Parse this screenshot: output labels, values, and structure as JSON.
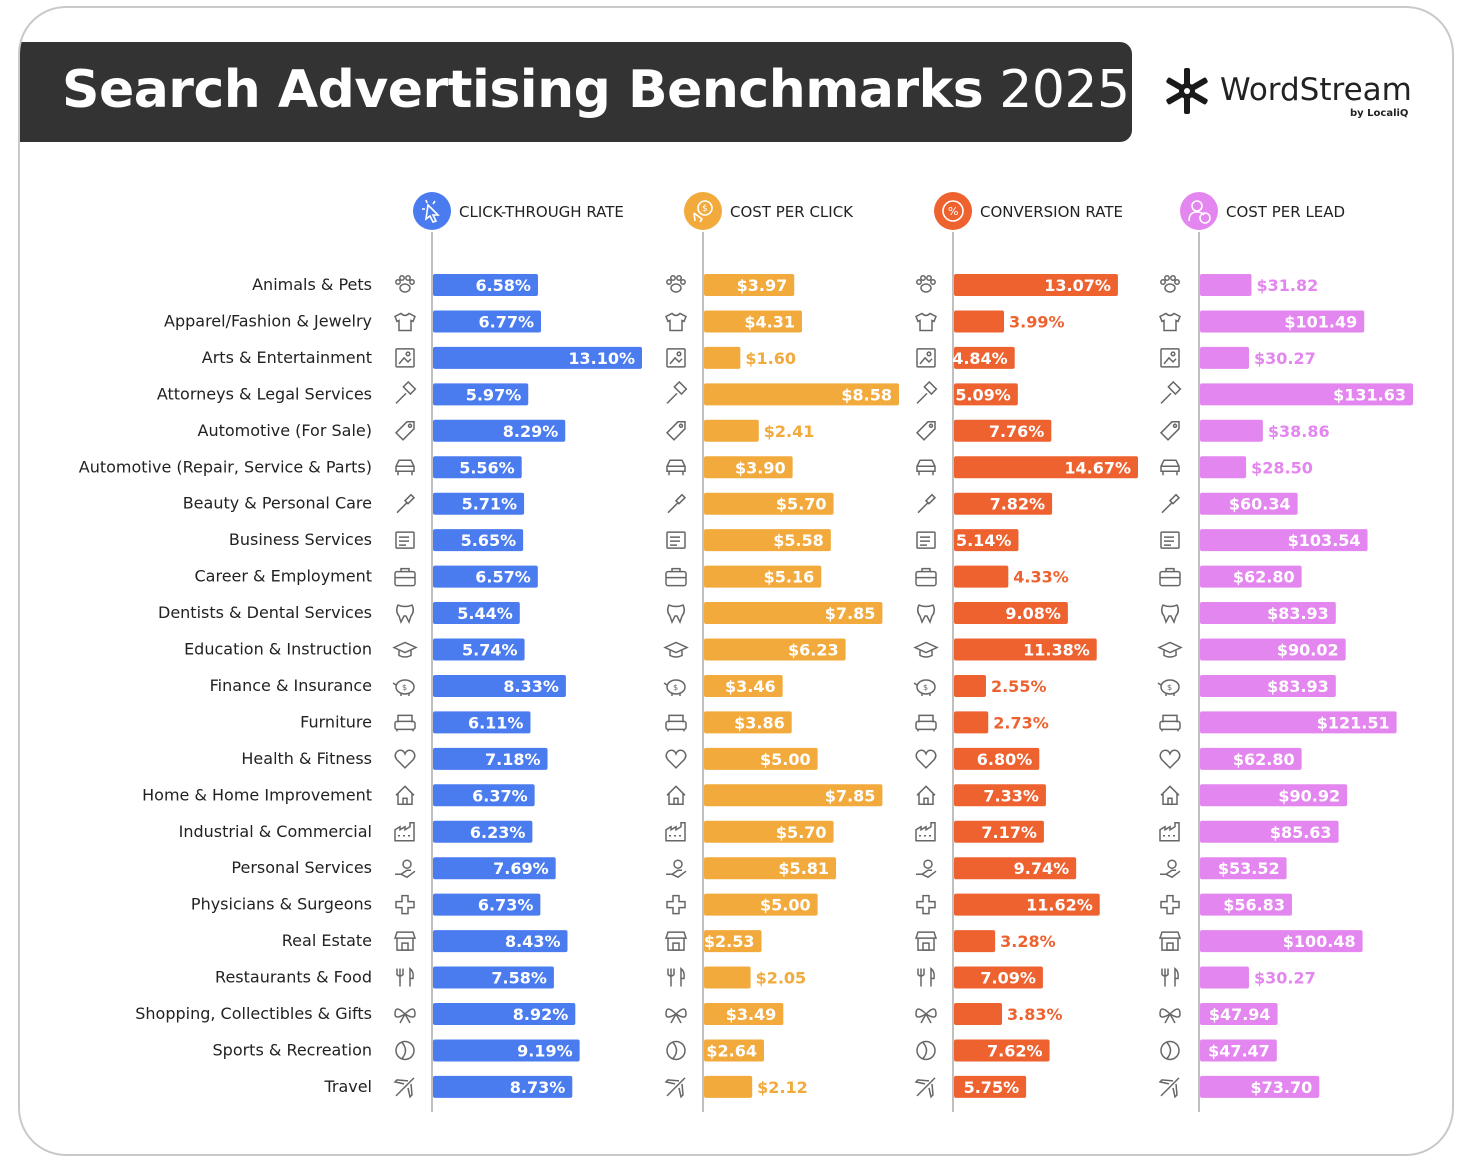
{
  "header": {
    "title_bold": "Search Advertising Benchmarks",
    "title_year": "2025"
  },
  "logo": {
    "name": "WordStream",
    "sub": "by LocaliQ"
  },
  "chart_data": {
    "type": "bar",
    "categories": [
      "Animals & Pets",
      "Apparel/Fashion & Jewelry",
      "Arts & Entertainment",
      "Attorneys & Legal Services",
      "Automotive (For Sale)",
      "Automotive (Repair, Service & Parts)",
      "Beauty & Personal Care",
      "Business Services",
      "Career & Employment",
      "Dentists & Dental Services",
      "Education & Instruction",
      "Finance & Insurance",
      "Furniture",
      "Health & Fitness",
      "Home & Home Improvement",
      "Industrial & Commercial",
      "Personal Services",
      "Physicians & Surgeons",
      "Real Estate",
      "Restaurants & Food",
      "Shopping, Collectibles & Gifts",
      "Sports & Recreation",
      "Travel"
    ],
    "category_icons": [
      "paw-icon",
      "shirt-icon",
      "picture-icon",
      "gavel-icon",
      "price-tag-icon",
      "car-icon",
      "brush-icon",
      "document-icon",
      "briefcase-icon",
      "tooth-icon",
      "graduation-cap-icon",
      "piggy-bank-icon",
      "armchair-icon",
      "heart-icon",
      "house-icon",
      "factory-icon",
      "hand-icon",
      "medical-cross-icon",
      "storefront-icon",
      "utensils-icon",
      "gift-bow-icon",
      "ball-icon",
      "airplane-icon"
    ],
    "series": [
      {
        "name": "CLICK-THROUGH RATE",
        "icon": "cursor-click-icon",
        "color": "#4a7cf0",
        "max": 13.1,
        "values": [
          6.58,
          6.77,
          13.1,
          5.97,
          8.29,
          5.56,
          5.71,
          5.65,
          6.57,
          5.44,
          5.74,
          8.33,
          6.11,
          7.18,
          6.37,
          6.23,
          7.69,
          6.73,
          8.43,
          7.58,
          8.92,
          9.19,
          8.73
        ],
        "labels": [
          "6.58%",
          "6.77%",
          "13.10%",
          "5.97%",
          "8.29%",
          "5.56%",
          "5.71%",
          "5.65%",
          "6.57%",
          "5.44%",
          "5.74%",
          "8.33%",
          "6.11%",
          "7.18%",
          "6.37%",
          "6.23%",
          "7.69%",
          "6.73%",
          "8.43%",
          "7.58%",
          "8.92%",
          "9.19%",
          "8.73%"
        ]
      },
      {
        "name": "COST PER CLICK",
        "icon": "dollar-click-icon",
        "color": "#f2aa3c",
        "max": 8.58,
        "values": [
          3.97,
          4.31,
          1.6,
          8.58,
          2.41,
          3.9,
          5.7,
          5.58,
          5.16,
          7.85,
          6.23,
          3.46,
          3.86,
          5.0,
          7.85,
          5.7,
          5.81,
          5.0,
          2.53,
          2.05,
          3.49,
          2.64,
          2.12
        ],
        "labels": [
          "$3.97",
          "$4.31",
          "$1.60",
          "$8.58",
          "$2.41",
          "$3.90",
          "$5.70",
          "$5.58",
          "$5.16",
          "$7.85",
          "$6.23",
          "$3.46",
          "$3.86",
          "$5.00",
          "$7.85",
          "$5.70",
          "$5.81",
          "$5.00",
          "$2.53",
          "$2.05",
          "$3.49",
          "$2.64",
          "$2.12"
        ]
      },
      {
        "name": "CONVERSION RATE",
        "icon": "percent-icon",
        "color": "#ee6230",
        "max": 14.67,
        "values": [
          13.07,
          3.99,
          4.84,
          5.09,
          7.76,
          14.67,
          7.82,
          5.14,
          4.33,
          9.08,
          11.38,
          2.55,
          2.73,
          6.8,
          7.33,
          7.17,
          9.74,
          11.62,
          3.28,
          7.09,
          3.83,
          7.62,
          5.75
        ],
        "labels": [
          "13.07%",
          "3.99%",
          "4.84%",
          "5.09%",
          "7.76%",
          "14.67%",
          "7.82%",
          "5.14%",
          "4.33%",
          "9.08%",
          "11.38%",
          "2.55%",
          "2.73%",
          "6.80%",
          "7.33%",
          "7.17%",
          "9.74%",
          "11.62%",
          "3.28%",
          "7.09%",
          "3.83%",
          "7.62%",
          "5.75%"
        ]
      },
      {
        "name": "COST PER LEAD",
        "icon": "user-dollar-icon",
        "color": "#e486ef",
        "max": 131.63,
        "values": [
          31.82,
          101.49,
          30.27,
          131.63,
          38.86,
          28.5,
          60.34,
          103.54,
          62.8,
          83.93,
          90.02,
          83.93,
          121.51,
          62.8,
          90.92,
          85.63,
          53.52,
          56.83,
          100.48,
          30.27,
          47.94,
          47.47,
          73.7
        ],
        "labels": [
          "$31.82",
          "$101.49",
          "$30.27",
          "$131.63",
          "$38.86",
          "$28.50",
          "$60.34",
          "$103.54",
          "$62.80",
          "$83.93",
          "$90.02",
          "$83.93",
          "$121.51",
          "$62.80",
          "$90.92",
          "$85.63",
          "$53.52",
          "$56.83",
          "$100.48",
          "$30.27",
          "$47.94",
          "$47.47",
          "$73.70"
        ]
      }
    ]
  }
}
